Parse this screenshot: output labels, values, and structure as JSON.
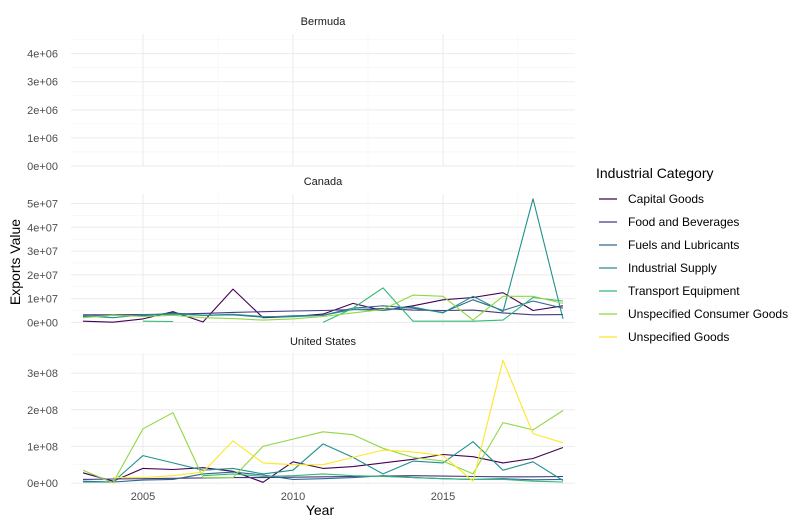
{
  "chart_data": {
    "type": "line",
    "xlabel": "Year",
    "ylabel": "Exports Value",
    "legend_title": "Industrial Category",
    "legend_position": "right",
    "grid": true,
    "xlim": [
      2002.6,
      2019.4
    ],
    "x_ticks": [
      2005,
      2010,
      2015
    ],
    "x_tick_labels": [
      "2005",
      "2010",
      "2015"
    ],
    "x": [
      2003,
      2004,
      2005,
      2006,
      2007,
      2008,
      2009,
      2010,
      2011,
      2012,
      2013,
      2014,
      2015,
      2016,
      2017,
      2018,
      2019
    ],
    "series_styles": [
      {
        "name": "Capital Goods",
        "color": "#440154"
      },
      {
        "name": "Food and Beverages",
        "color": "#443a83"
      },
      {
        "name": "Fuels and Lubricants",
        "color": "#31688e"
      },
      {
        "name": "Industrial Supply",
        "color": "#21908c"
      },
      {
        "name": "Transport Equipment",
        "color": "#35b779"
      },
      {
        "name": "Unspecified Consumer Goods",
        "color": "#8fd744"
      },
      {
        "name": "Unspecified Goods",
        "color": "#fde725"
      }
    ],
    "panels": [
      {
        "title": "Bermuda",
        "ylim": [
          0,
          4700000
        ],
        "y_ticks": [
          0,
          1000000,
          2000000,
          3000000,
          4000000
        ],
        "y_tick_labels": [
          "0e+00",
          "1e+06",
          "2e+06",
          "3e+06",
          "4e+06"
        ],
        "series": []
      },
      {
        "title": "Canada",
        "ylim": [
          -1500000,
          54000000
        ],
        "y_ticks": [
          0,
          10000000,
          20000000,
          30000000,
          40000000,
          50000000
        ],
        "y_tick_labels": [
          "0e+00",
          "1e+07",
          "2e+07",
          "3e+07",
          "4e+07",
          "5e+07"
        ],
        "series": [
          {
            "name": "Capital Goods",
            "values": [
              500000,
              100000,
              1500000,
              4500000,
              200000,
              14000000,
              2000000,
              2500000,
              3500000,
              8000000,
              5000000,
              7000000,
              9500000,
              10500000,
              12500000,
              5000000,
              7000000
            ]
          },
          {
            "name": "Food and Beverages",
            "values": [
              3200000,
              3200000,
              3300000,
              3500000,
              3800000,
              4200000,
              4500000,
              4800000,
              5000000,
              5400000,
              5800000,
              5200000,
              5000000,
              5200000,
              4000000,
              3200000,
              3300000
            ]
          },
          {
            "name": "Fuels and Lubricants",
            "values": [
              2500000,
              3000000,
              2800000,
              4000000,
              3000000,
              3200000,
              2200000,
              2800000,
              3000000,
              6000000,
              7000000,
              6000000,
              4200000,
              9500000,
              5000000,
              9000000,
              6000000
            ]
          },
          {
            "name": "Industrial Supply",
            "values": [
              2800000,
              2000000,
              3200000,
              3500000,
              3000000,
              3400000,
              2500000,
              2400000,
              3000000,
              5500000,
              5000000,
              6500000,
              4000000,
              11000000,
              4500000,
              52000000,
              1500000
            ]
          },
          {
            "name": "Transport Equipment",
            "values": [
              null,
              null,
              500000,
              400000,
              null,
              null,
              null,
              null,
              0,
              6000000,
              14500000,
              500000,
              500000,
              500000,
              1000000,
              10500000,
              9000000
            ]
          },
          {
            "name": "Unspecified Consumer Goods",
            "values": [
              2000000,
              3000000,
              2500000,
              3000000,
              2000000,
              1600000,
              1000000,
              1500000,
              2500000,
              4000000,
              5500000,
              11500000,
              11000000,
              1000000,
              11000000,
              11000000,
              8000000
            ]
          },
          {
            "name": "Unspecified Goods",
            "values": [
              null,
              null,
              null,
              null,
              null,
              null,
              null,
              null,
              null,
              null,
              null,
              null,
              null,
              null,
              null,
              null,
              null
            ]
          }
        ]
      },
      {
        "title": "United States",
        "ylim": [
          -8000000,
          355000000
        ],
        "y_ticks": [
          0,
          100000000,
          200000000,
          300000000
        ],
        "y_tick_labels": [
          "0e+00",
          "1e+08",
          "2e+08",
          "3e+08"
        ],
        "series": [
          {
            "name": "Capital Goods",
            "values": [
              28000000,
              5000000,
              40000000,
              37000000,
              42000000,
              32000000,
              2000000,
              58000000,
              40000000,
              45000000,
              55000000,
              65000000,
              78000000,
              72000000,
              55000000,
              67000000,
              97000000
            ]
          },
          {
            "name": "Food and Beverages",
            "values": [
              10000000,
              11000000,
              12000000,
              13000000,
              14000000,
              15000000,
              15000000,
              16000000,
              17000000,
              18000000,
              19000000,
              20000000,
              19000000,
              18000000,
              17000000,
              17000000,
              18000000
            ]
          },
          {
            "name": "Fuels and Lubricants",
            "values": [
              5000000,
              3000000,
              8000000,
              10000000,
              25000000,
              30000000,
              22000000,
              10000000,
              12000000,
              15000000,
              20000000,
              15000000,
              12000000,
              10000000,
              12000000,
              9000000,
              10000000
            ]
          },
          {
            "name": "Industrial Supply",
            "values": [
              3000000,
              3000000,
              75000000,
              55000000,
              35000000,
              40000000,
              25000000,
              35000000,
              107000000,
              70000000,
              25000000,
              60000000,
              55000000,
              113000000,
              35000000,
              58000000,
              7000000
            ]
          },
          {
            "name": "Transport Equipment",
            "values": [
              null,
              null,
              null,
              null,
              20000000,
              25000000,
              18000000,
              20000000,
              25000000,
              20000000,
              18000000,
              15000000,
              12000000,
              10000000,
              10000000,
              5000000,
              3000000
            ]
          },
          {
            "name": "Unspecified Consumer Goods",
            "values": [
              35000000,
              1000000,
              148000000,
              192000000,
              15000000,
              15000000,
              100000000,
              120000000,
              140000000,
              132000000,
              95000000,
              70000000,
              60000000,
              25000000,
              165000000,
              145000000,
              198000000
            ]
          },
          {
            "name": "Unspecified Goods",
            "values": [
              null,
              15000000,
              15000000,
              20000000,
              30000000,
              115000000,
              55000000,
              50000000,
              50000000,
              70000000,
              90000000,
              85000000,
              75000000,
              5000000,
              335000000,
              135000000,
              110000000
            ]
          }
        ]
      }
    ]
  }
}
